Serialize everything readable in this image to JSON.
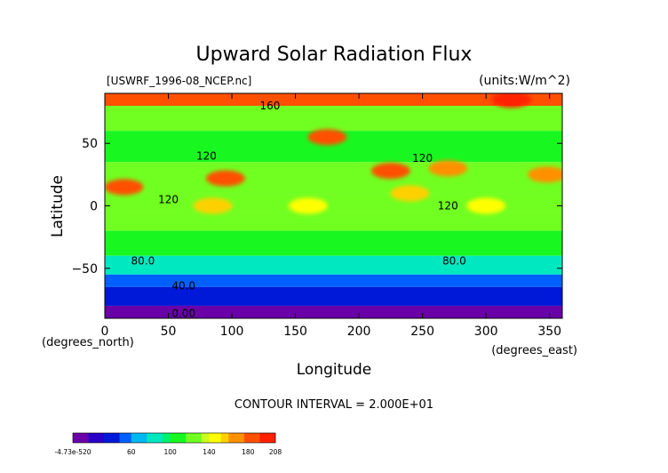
{
  "chart_data": {
    "type": "heatmap",
    "title": "Upward Solar Radiation Flux",
    "file_label": "[USWRF_1996-08_NCEP.nc]",
    "units_label": "(units:W/m^2)",
    "xlabel": "Longitude",
    "ylabel": "Latitude",
    "x_unit_label": "(degrees_east)",
    "y_unit_label": "(degrees_north)",
    "xlim": [
      0,
      360
    ],
    "ylim": [
      -90,
      90
    ],
    "x_ticks": [
      0,
      50,
      100,
      150,
      200,
      250,
      300,
      350
    ],
    "y_ticks": [
      -50,
      0,
      50
    ],
    "contour_interval_text": "CONTOUR INTERVAL = 2.000E+01",
    "contour_labels": [
      {
        "text": "160",
        "x": 130,
        "y": 80
      },
      {
        "text": "120",
        "x": 80,
        "y": 40
      },
      {
        "text": "120",
        "x": 250,
        "y": 38
      },
      {
        "text": "120",
        "x": 50,
        "y": 5
      },
      {
        "text": "120",
        "x": 270,
        "y": 0
      },
      {
        "text": "80.0",
        "x": 30,
        "y": -44
      },
      {
        "text": "80.0",
        "x": 275,
        "y": -44
      },
      {
        "text": "40.0",
        "x": 62,
        "y": -64
      },
      {
        "text": "0.00",
        "x": 62,
        "y": -86
      }
    ],
    "colorbar": {
      "min_label": "-4.73e-520",
      "tick_labels": [
        "60",
        "100",
        "140",
        "180",
        "208"
      ],
      "tick_values": [
        60,
        100,
        140,
        180,
        208
      ],
      "range": [
        0,
        208
      ]
    },
    "zonal_bands": [
      {
        "lat_from": 90,
        "lat_to": 80,
        "value": 175
      },
      {
        "lat_from": 80,
        "lat_to": 60,
        "value": 120
      },
      {
        "lat_from": 60,
        "lat_to": 35,
        "value": 110
      },
      {
        "lat_from": 35,
        "lat_to": 10,
        "value": 125
      },
      {
        "lat_from": 10,
        "lat_to": -5,
        "value": 120
      },
      {
        "lat_from": -5,
        "lat_to": -20,
        "value": 115
      },
      {
        "lat_from": -20,
        "lat_to": -40,
        "value": 100
      },
      {
        "lat_from": -40,
        "lat_to": -55,
        "value": 80
      },
      {
        "lat_from": -55,
        "lat_to": -65,
        "value": 55
      },
      {
        "lat_from": -65,
        "lat_to": -80,
        "value": 30
      },
      {
        "lat_from": -80,
        "lat_to": -90,
        "value": 0
      }
    ],
    "hotspots": [
      {
        "lon": 95,
        "lat": 22,
        "value": 185
      },
      {
        "lon": 15,
        "lat": 15,
        "value": 180
      },
      {
        "lon": 225,
        "lat": 28,
        "value": 175
      },
      {
        "lon": 175,
        "lat": 55,
        "value": 180
      },
      {
        "lon": 320,
        "lat": 85,
        "value": 190
      },
      {
        "lon": 270,
        "lat": 30,
        "value": 170
      },
      {
        "lon": 348,
        "lat": 25,
        "value": 170
      },
      {
        "lon": 240,
        "lat": 10,
        "value": 150
      },
      {
        "lon": 85,
        "lat": 0,
        "value": 150
      },
      {
        "lon": 160,
        "lat": 0,
        "value": 145
      },
      {
        "lon": 300,
        "lat": 0,
        "value": 140
      }
    ]
  }
}
